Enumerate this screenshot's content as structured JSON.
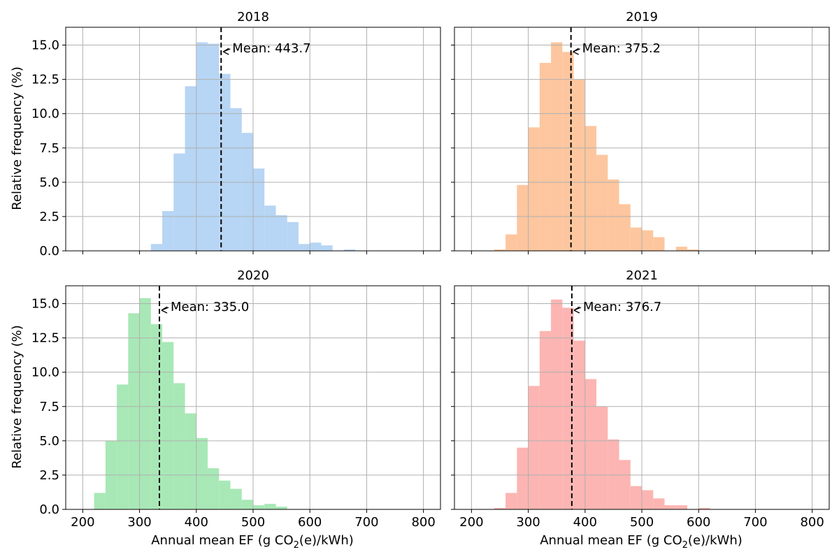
{
  "figure": {
    "xlabel_main": "Annual mean EF (g CO",
    "xlabel_sub": "2",
    "xlabel_tail": "(e)/kWh)",
    "ylabel": "Relative frequency (%)"
  },
  "colors": {
    "2018": "#b7d5f4",
    "2019": "#fdc69e",
    "2020": "#a8e8b6",
    "2021": "#fcb5b2",
    "grid": "#b0b0b0",
    "mean_line": "#000000"
  },
  "chart_data": [
    {
      "type": "bar",
      "title": "2018",
      "bin_width": 20,
      "bin_starts": [
        320,
        340,
        360,
        380,
        400,
        420,
        440,
        460,
        480,
        500,
        520,
        540,
        560,
        580,
        600,
        620,
        640,
        660
      ],
      "values": [
        0.5,
        2.9,
        7.1,
        12.0,
        15.2,
        15.1,
        12.9,
        10.4,
        8.6,
        6.0,
        3.3,
        2.6,
        2.1,
        0.5,
        0.6,
        0.4,
        0.0,
        0.1
      ],
      "mean": 443.7,
      "mean_label": "Mean: 443.7",
      "xlim": [
        170,
        830
      ],
      "ylim": [
        0,
        16.3
      ],
      "xticks": [
        200,
        300,
        400,
        500,
        600,
        700,
        800
      ],
      "yticks": [
        0.0,
        2.5,
        5.0,
        7.5,
        10.0,
        12.5,
        15.0
      ],
      "ytick_labels": [
        "0.0",
        "2.5",
        "5.0",
        "7.5",
        "10.0",
        "12.5",
        "15.0"
      ],
      "grid": true
    },
    {
      "type": "bar",
      "title": "2019",
      "bin_width": 20,
      "bin_starts": [
        240,
        260,
        280,
        300,
        320,
        340,
        360,
        380,
        400,
        420,
        440,
        460,
        480,
        500,
        520,
        540,
        560,
        580
      ],
      "values": [
        0.1,
        1.2,
        4.8,
        9.0,
        13.7,
        15.2,
        14.5,
        12.5,
        9.1,
        7.0,
        5.2,
        3.4,
        1.7,
        1.5,
        1.0,
        0.0,
        0.3,
        0.1
      ],
      "mean": 375.2,
      "mean_label": "Mean: 375.2",
      "xlim": [
        170,
        830
      ],
      "ylim": [
        0,
        16.3
      ],
      "xticks": [
        200,
        300,
        400,
        500,
        600,
        700,
        800
      ],
      "yticks": [
        0.0,
        2.5,
        5.0,
        7.5,
        10.0,
        12.5,
        15.0
      ],
      "grid": true
    },
    {
      "type": "bar",
      "title": "2020",
      "bin_width": 20,
      "bin_starts": [
        220,
        240,
        260,
        280,
        300,
        320,
        340,
        360,
        380,
        400,
        420,
        440,
        460,
        480,
        500,
        520,
        540
      ],
      "values": [
        1.2,
        5.0,
        9.1,
        14.3,
        15.4,
        13.5,
        12.2,
        9.2,
        7.0,
        5.2,
        3.0,
        2.1,
        1.5,
        0.7,
        0.3,
        0.4,
        0.2
      ],
      "mean": 335.0,
      "mean_label": "Mean: 335.0",
      "xlim": [
        170,
        830
      ],
      "ylim": [
        0,
        16.3
      ],
      "xticks": [
        200,
        300,
        400,
        500,
        600,
        700,
        800
      ],
      "xtick_labels": [
        "200",
        "300",
        "400",
        "500",
        "600",
        "700",
        "800"
      ],
      "yticks": [
        0.0,
        2.5,
        5.0,
        7.5,
        10.0,
        12.5,
        15.0
      ],
      "ytick_labels": [
        "0.0",
        "2.5",
        "5.0",
        "7.5",
        "10.0",
        "12.5",
        "15.0"
      ],
      "grid": true
    },
    {
      "type": "bar",
      "title": "2021",
      "bin_width": 20,
      "bin_starts": [
        240,
        260,
        280,
        300,
        320,
        340,
        360,
        380,
        400,
        420,
        440,
        460,
        480,
        500,
        520,
        540,
        560,
        580,
        600
      ],
      "values": [
        0.1,
        1.2,
        4.5,
        9.0,
        13.0,
        15.3,
        14.7,
        12.3,
        9.5,
        7.5,
        5.1,
        3.6,
        1.7,
        1.4,
        0.8,
        0.3,
        0.3,
        0.0,
        0.1
      ],
      "mean": 376.7,
      "mean_label": "Mean: 376.7",
      "xlim": [
        170,
        830
      ],
      "ylim": [
        0,
        16.3
      ],
      "xticks": [
        200,
        300,
        400,
        500,
        600,
        700,
        800
      ],
      "xtick_labels": [
        "200",
        "300",
        "400",
        "500",
        "600",
        "700",
        "800"
      ],
      "yticks": [
        0.0,
        2.5,
        5.0,
        7.5,
        10.0,
        12.5,
        15.0
      ],
      "grid": true
    }
  ]
}
